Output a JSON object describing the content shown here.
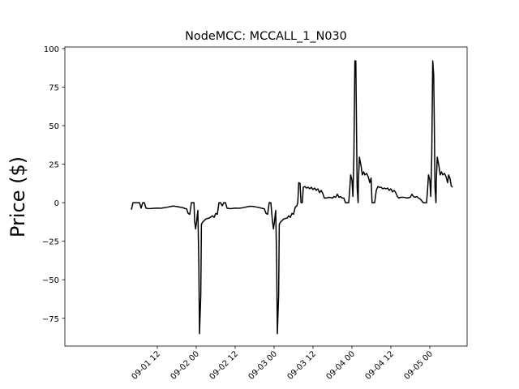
{
  "chart_data": {
    "type": "line",
    "title": "NodeMCC: MCCALL_1_N030",
    "xlabel": "",
    "ylabel": "Price ($)",
    "xlim_hours": [
      -16.5,
      107.5
    ],
    "ylim": [
      -93,
      101
    ],
    "grid": false,
    "x_tick_values_hours": [
      12,
      24,
      36,
      48,
      60,
      72,
      84,
      96
    ],
    "x_tick_labels": [
      "09-01 12",
      "09-02 00",
      "09-02 12",
      "09-03 00",
      "09-03 12",
      "09-04 00",
      "09-04 12",
      "09-05 00"
    ],
    "y_tick_values": [
      -75,
      -50,
      -25,
      0,
      25,
      50,
      75,
      100
    ],
    "y_tick_labels": [
      "−75",
      "−50",
      "−25",
      "0",
      "25",
      "50",
      "75",
      "100"
    ],
    "series": [
      {
        "color": "#000000",
        "points": [
          [
            4.0,
            -4.5
          ],
          [
            4.5,
            0
          ],
          [
            5.0,
            0
          ],
          [
            5.5,
            0
          ],
          [
            6.0,
            0
          ],
          [
            6.5,
            0
          ],
          [
            7.0,
            -3.5
          ],
          [
            7.5,
            0
          ],
          [
            8.0,
            0
          ],
          [
            8.5,
            -3.5
          ],
          [
            9.0,
            -3.8
          ],
          [
            10.0,
            -3.8
          ],
          [
            11.0,
            -3.6
          ],
          [
            12.0,
            -3.5
          ],
          [
            13.0,
            -3.6
          ],
          [
            14.0,
            -3.3
          ],
          [
            15.0,
            -3.0
          ],
          [
            16.0,
            -2.5
          ],
          [
            17.0,
            -2.2
          ],
          [
            18.0,
            -2.5
          ],
          [
            19.0,
            -2.9
          ],
          [
            20.0,
            -3.3
          ],
          [
            20.5,
            -3.8
          ],
          [
            21.0,
            -3.9
          ],
          [
            21.5,
            -7.0
          ],
          [
            22.0,
            -7.5
          ],
          [
            22.5,
            0
          ],
          [
            23.0,
            0
          ],
          [
            23.3,
            0
          ],
          [
            23.5,
            -12.0
          ],
          [
            23.8,
            -17.0
          ],
          [
            24.0,
            -14.0
          ],
          [
            24.5,
            -5.0
          ],
          [
            24.8,
            -40.0
          ],
          [
            25.0,
            -85.0
          ],
          [
            25.4,
            -60.0
          ],
          [
            25.6,
            -14.0
          ],
          [
            26.0,
            -12.5
          ],
          [
            27.0,
            -10.5
          ],
          [
            28.0,
            -10.0
          ],
          [
            29.0,
            -8.5
          ],
          [
            29.5,
            -9.5
          ],
          [
            30.0,
            -7.0
          ],
          [
            30.5,
            -7.5
          ],
          [
            31.0,
            0
          ],
          [
            31.5,
            0
          ],
          [
            32.0,
            -2.0
          ],
          [
            32.5,
            0
          ],
          [
            33.0,
            0
          ],
          [
            33.5,
            -3.5
          ],
          [
            34.0,
            -3.8
          ],
          [
            35.0,
            -3.8
          ],
          [
            36.0,
            -3.5
          ],
          [
            37.0,
            -3.6
          ],
          [
            38.0,
            -3.4
          ],
          [
            39.0,
            -3.0
          ],
          [
            40.0,
            -2.5
          ],
          [
            41.0,
            -2.3
          ],
          [
            42.0,
            -2.6
          ],
          [
            43.0,
            -3.0
          ],
          [
            44.0,
            -3.5
          ],
          [
            45.0,
            -4.0
          ],
          [
            45.5,
            -7.0
          ],
          [
            46.0,
            -7.5
          ],
          [
            46.5,
            0
          ],
          [
            47.0,
            0
          ],
          [
            47.5,
            -12.0
          ],
          [
            47.8,
            -17.0
          ],
          [
            48.0,
            -14.0
          ],
          [
            48.5,
            -5.0
          ],
          [
            48.8,
            -40.0
          ],
          [
            49.0,
            -85.0
          ],
          [
            49.4,
            -60.0
          ],
          [
            49.6,
            -14.0
          ],
          [
            50.0,
            -12.5
          ],
          [
            51.0,
            -10.5
          ],
          [
            52.0,
            -10.0
          ],
          [
            52.5,
            -8.5
          ],
          [
            53.0,
            -9.5
          ],
          [
            53.5,
            -7.0
          ],
          [
            54.0,
            -7.5
          ],
          [
            54.5,
            -3.0
          ],
          [
            55.0,
            -2.0
          ],
          [
            55.3,
            0
          ],
          [
            55.6,
            13.0
          ],
          [
            56.0,
            12.5
          ],
          [
            56.3,
            0
          ],
          [
            56.7,
            0
          ],
          [
            57.0,
            10.0
          ],
          [
            57.5,
            10.5
          ],
          [
            58.0,
            9.5
          ],
          [
            58.5,
            10.0
          ],
          [
            59.0,
            9.0
          ],
          [
            59.5,
            10.0
          ],
          [
            60.0,
            8.5
          ],
          [
            60.5,
            9.5
          ],
          [
            61.0,
            8.0
          ],
          [
            61.5,
            9.0
          ],
          [
            62.0,
            6.5
          ],
          [
            62.5,
            8.0
          ],
          [
            63.0,
            6.0
          ],
          [
            63.5,
            3.0
          ],
          [
            64.0,
            3.0
          ],
          [
            65.0,
            3.5
          ],
          [
            66.0,
            3.0
          ],
          [
            66.5,
            4.0
          ],
          [
            67.0,
            3.5
          ],
          [
            67.5,
            5.5
          ],
          [
            68.0,
            3.5
          ],
          [
            68.5,
            4.0
          ],
          [
            69.0,
            3.0
          ],
          [
            69.5,
            3.0
          ],
          [
            70.0,
            0
          ],
          [
            71.0,
            0
          ],
          [
            71.3,
            8.0
          ],
          [
            71.6,
            18.0
          ],
          [
            72.0,
            15.0
          ],
          [
            72.3,
            4.0
          ],
          [
            72.6,
            30.0
          ],
          [
            72.9,
            92.0
          ],
          [
            73.2,
            92.0
          ],
          [
            73.4,
            50.0
          ],
          [
            73.6,
            10.0
          ],
          [
            73.9,
            0
          ],
          [
            74.0,
            14.0
          ],
          [
            74.3,
            29.5
          ],
          [
            74.8,
            24.0
          ],
          [
            75.2,
            18.0
          ],
          [
            75.6,
            20.0
          ],
          [
            76.0,
            18.0
          ],
          [
            76.5,
            19.0
          ],
          [
            77.0,
            17.0
          ],
          [
            77.5,
            13.0
          ],
          [
            77.9,
            16.0
          ],
          [
            78.2,
            0
          ],
          [
            79.0,
            0
          ],
          [
            79.5,
            8.0
          ],
          [
            80.0,
            10.5
          ],
          [
            80.5,
            10.0
          ],
          [
            81.0,
            10.0
          ],
          [
            81.5,
            9.0
          ],
          [
            82.0,
            9.5
          ],
          [
            82.5,
            9.0
          ],
          [
            83.0,
            9.5
          ],
          [
            83.5,
            8.0
          ],
          [
            84.0,
            9.0
          ],
          [
            84.5,
            7.0
          ],
          [
            85.0,
            8.0
          ],
          [
            85.5,
            6.5
          ],
          [
            86.0,
            4.0
          ],
          [
            86.5,
            3.0
          ],
          [
            87.0,
            3.5
          ],
          [
            88.0,
            3.5
          ],
          [
            89.0,
            3.0
          ],
          [
            90.0,
            3.5
          ],
          [
            90.5,
            5.5
          ],
          [
            91.0,
            4.0
          ],
          [
            91.5,
            3.5
          ],
          [
            92.0,
            4.0
          ],
          [
            92.5,
            3.0
          ],
          [
            93.0,
            2.5
          ],
          [
            94.0,
            0
          ],
          [
            95.0,
            0
          ],
          [
            95.3,
            8.0
          ],
          [
            95.6,
            18.0
          ],
          [
            96.0,
            15.0
          ],
          [
            96.3,
            4.0
          ],
          [
            96.6,
            30.0
          ],
          [
            96.9,
            92.0
          ],
          [
            97.2,
            83.0
          ],
          [
            97.4,
            50.0
          ],
          [
            97.6,
            10.0
          ],
          [
            97.9,
            0
          ],
          [
            98.0,
            14.0
          ],
          [
            98.3,
            29.5
          ],
          [
            98.8,
            24.0
          ],
          [
            99.2,
            18.0
          ],
          [
            99.6,
            20.0
          ],
          [
            100.0,
            18.0
          ],
          [
            100.5,
            19.0
          ],
          [
            101.0,
            17.0
          ],
          [
            101.5,
            13.0
          ],
          [
            101.8,
            18.0
          ],
          [
            102.2,
            16.0
          ],
          [
            102.6,
            11.0
          ],
          [
            103.0,
            10.0
          ]
        ]
      }
    ]
  }
}
